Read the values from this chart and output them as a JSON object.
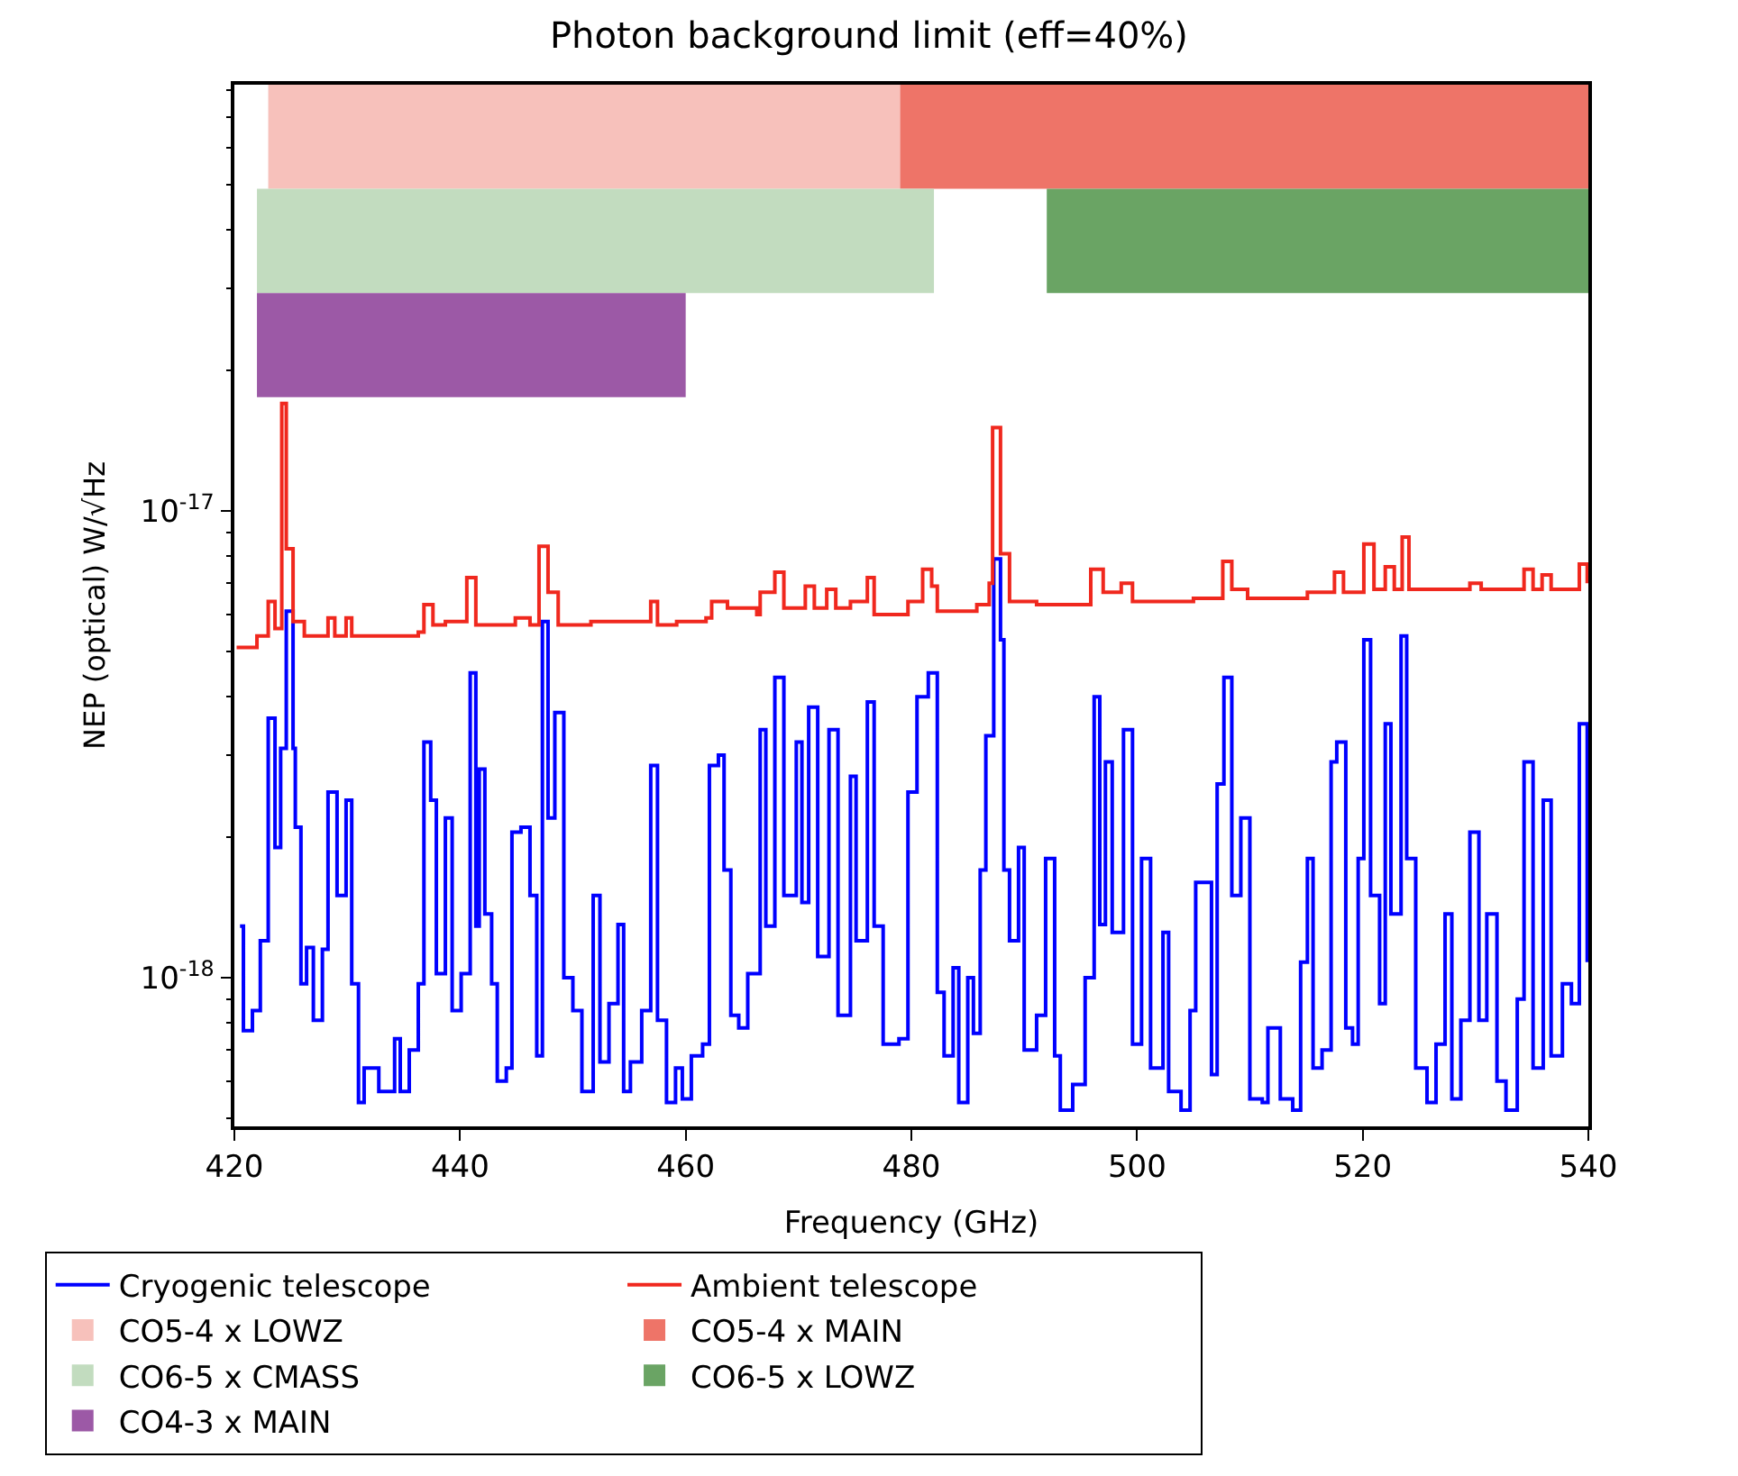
{
  "chart_data": {
    "type": "step",
    "title": "Photon background limit (eff=40%)",
    "xlabel": "Frequency (GHz)",
    "ylabel": "NEP (optical) W/√Hz",
    "log": "y",
    "grid": false,
    "legend": "bottom",
    "marker": "none",
    "line_style": "solid",
    "xlim": [
      420,
      540
    ],
    "xticks": [
      420,
      440,
      460,
      480,
      500,
      520,
      540
    ],
    "ylim": [
      4.8e-19,
      8.2e-17
    ],
    "yticks": [
      {
        "value": 1e-18,
        "label": "10$^{-18}$"
      },
      {
        "value": 1e-17,
        "label": "10$^{-17}$"
      }
    ],
    "series": [
      {
        "name": "Cryogenic telescope",
        "color": "#0000ff",
        "x": [
          420.5,
          420.8,
          421.6,
          422.3,
          423.0,
          423.6,
          424.1,
          424.6,
          425.2,
          425.4,
          425.9,
          426.4,
          427.0,
          427.8,
          428.3,
          429.1,
          429.9,
          430.4,
          431.0,
          431.5,
          432.8,
          434.2,
          434.7,
          435.5,
          436.3,
          436.8,
          437.4,
          437.9,
          438.7,
          439.3,
          440.1,
          440.9,
          441.4,
          441.7,
          442.2,
          442.8,
          443.3,
          444.1,
          444.6,
          445.4,
          446.2,
          446.8,
          447.3,
          447.8,
          448.4,
          449.2,
          450.0,
          450.8,
          451.8,
          452.4,
          453.2,
          454.0,
          454.5,
          455.1,
          456.1,
          456.9,
          457.5,
          458.3,
          459.1,
          459.7,
          460.5,
          461.5,
          462.1,
          462.9,
          463.4,
          464.0,
          464.7,
          465.5,
          466.6,
          467.1,
          467.9,
          468.7,
          469.8,
          470.3,
          470.9,
          471.7,
          472.7,
          473.5,
          474.6,
          475.1,
          476.1,
          476.7,
          477.5,
          478.9,
          479.7,
          480.5,
          481.5,
          482.3,
          482.9,
          483.7,
          484.2,
          485.0,
          485.5,
          486.1,
          486.6,
          487.3,
          487.9,
          488.2,
          488.7,
          489.5,
          490.0,
          491.1,
          491.9,
          492.7,
          493.2,
          494.3,
          495.4,
          496.2,
          496.7,
          497.2,
          497.8,
          498.8,
          499.6,
          500.4,
          501.2,
          502.3,
          502.8,
          503.9,
          504.7,
          505.2,
          506.6,
          507.1,
          507.7,
          508.4,
          509.2,
          510.0,
          511.1,
          511.6,
          512.7,
          513.8,
          514.5,
          515.1,
          515.6,
          516.4,
          517.2,
          517.7,
          518.5,
          519.1,
          519.6,
          520.1,
          520.7,
          521.5,
          522.0,
          522.5,
          523.4,
          523.9,
          524.7,
          525.7,
          526.5,
          527.3,
          527.9,
          528.7,
          529.5,
          530.3,
          531.0,
          531.9,
          532.7,
          533.7,
          534.3,
          535.1,
          536.0,
          536.7,
          537.7,
          538.5,
          539.2,
          539.9
        ],
        "values": [
          1.29e-18,
          7.7e-19,
          8.5e-19,
          1.2e-18,
          3.6e-18,
          1.9e-18,
          3.1e-18,
          6.1e-18,
          3.1e-18,
          2.1e-18,
          9.7e-19,
          1.16e-18,
          8.1e-19,
          1.15e-18,
          2.5e-18,
          1.5e-18,
          2.4e-18,
          9.7e-19,
          5.4e-19,
          6.4e-19,
          5.7e-19,
          7.4e-19,
          5.7e-19,
          7e-19,
          9.7e-19,
          3.2e-18,
          2.4e-18,
          1.02e-18,
          2.2e-18,
          8.5e-19,
          1.02e-18,
          4.5e-18,
          1.29e-18,
          2.8e-18,
          1.37e-18,
          9.7e-19,
          6e-19,
          6.4e-19,
          2.05e-18,
          2.1e-18,
          1.5e-18,
          6.8e-19,
          5.8e-18,
          2.2e-18,
          3.7e-18,
          1e-18,
          8.5e-19,
          5.7e-19,
          1.5e-18,
          6.6e-19,
          8.8e-19,
          1.3e-18,
          5.7e-19,
          6.6e-19,
          8.5e-19,
          2.85e-18,
          8.1e-19,
          5.4e-19,
          6.4e-19,
          5.5e-19,
          6.8e-19,
          7.2e-19,
          2.85e-18,
          3e-18,
          1.7e-18,
          8.3e-19,
          7.8e-19,
          1.02e-18,
          3.4e-18,
          1.29e-18,
          4.4e-18,
          1.5e-18,
          3.2e-18,
          1.45e-18,
          3.8e-18,
          1.11e-18,
          3.4e-18,
          8.3e-19,
          2.7e-18,
          1.2e-18,
          3.9e-18,
          1.29e-18,
          7.2e-19,
          7.4e-19,
          2.5e-18,
          4e-18,
          4.5e-18,
          9.3e-19,
          6.8e-19,
          1.05e-18,
          5.4e-19,
          1e-18,
          7.6e-19,
          1.7e-18,
          3.3e-18,
          7.9e-18,
          5.3e-18,
          1.7e-18,
          1.2e-18,
          1.9e-18,
          7e-19,
          8.3e-19,
          1.8e-18,
          6.8e-19,
          5.2e-19,
          5.9e-19,
          1e-18,
          4e-18,
          1.3e-18,
          2.9e-18,
          1.25e-18,
          3.4e-18,
          7.2e-19,
          1.8e-18,
          6.4e-19,
          1.25e-18,
          5.7e-19,
          5.2e-19,
          8.5e-19,
          1.6e-18,
          6.2e-19,
          2.6e-18,
          4.4e-18,
          1.5e-18,
          2.2e-18,
          5.5e-19,
          5.4e-19,
          7.8e-19,
          5.5e-19,
          5.2e-19,
          1.08e-18,
          1.8e-18,
          6.4e-19,
          7e-19,
          2.9e-18,
          3.2e-18,
          7.8e-19,
          7.2e-19,
          1.8e-18,
          5.3e-18,
          1.5e-18,
          8.8e-19,
          3.5e-18,
          1.37e-18,
          5.4e-18,
          1.8e-18,
          6.4e-19,
          5.4e-19,
          7.2e-19,
          1.37e-18,
          5.5e-19,
          8.1e-19,
          2.05e-18,
          8.1e-19,
          1.37e-18,
          6e-19,
          5.2e-19,
          9e-19,
          2.9e-18,
          6.4e-19,
          2.4e-18,
          6.8e-19,
          9.7e-19,
          8.8e-19,
          3.5e-18,
          1.08e-18
        ]
      },
      {
        "name": "Ambient telescope",
        "color": "#f0281e",
        "x": [
          420.2,
          422.0,
          423.0,
          423.6,
          424.2,
          424.6,
          425.2,
          426.2,
          428.3,
          428.9,
          429.9,
          430.4,
          436.3,
          436.8,
          437.6,
          438.7,
          440.6,
          441.4,
          444.9,
          446.2,
          447.0,
          447.8,
          448.7,
          451.6,
          454.2,
          456.9,
          457.5,
          459.2,
          461.8,
          462.3,
          463.7,
          466.3,
          466.6,
          467.9,
          468.7,
          470.6,
          471.4,
          472.5,
          473.3,
          474.6,
          476.1,
          476.7,
          479.7,
          481.0,
          481.8,
          482.3,
          485.8,
          486.9,
          487.2,
          487.9,
          488.7,
          491.1,
          495.9,
          497.0,
          498.6,
          499.6,
          500.2,
          505.0,
          507.6,
          508.4,
          509.8,
          515.1,
          517.5,
          518.3,
          520.1,
          521.0,
          522.0,
          522.8,
          523.5,
          524.1,
          529.5,
          530.5,
          534.3,
          535.1,
          535.9,
          536.7,
          539.2,
          539.9
        ],
        "values": [
          5.1e-18,
          5.4e-18,
          6.4e-18,
          5.6e-18,
          1.7e-17,
          8.3e-18,
          5.8e-18,
          5.4e-18,
          5.9e-18,
          5.4e-18,
          5.9e-18,
          5.4e-18,
          5.5e-18,
          6.3e-18,
          5.7e-18,
          5.8e-18,
          7.2e-18,
          5.7e-18,
          5.9e-18,
          5.7e-18,
          8.4e-18,
          6.7e-18,
          5.7e-18,
          5.8e-18,
          5.8e-18,
          6.4e-18,
          5.7e-18,
          5.8e-18,
          5.9e-18,
          6.4e-18,
          6.2e-18,
          6e-18,
          6.7e-18,
          7.4e-18,
          6.2e-18,
          6.9e-18,
          6.2e-18,
          6.8e-18,
          6.2e-18,
          6.4e-18,
          7.2e-18,
          6e-18,
          6.4e-18,
          7.5e-18,
          6.9e-18,
          6.1e-18,
          6.3e-18,
          7e-18,
          1.51e-17,
          8.1e-18,
          6.4e-18,
          6.3e-18,
          7.5e-18,
          6.7e-18,
          7e-18,
          6.4e-18,
          6.4e-18,
          6.5e-18,
          7.8e-18,
          6.8e-18,
          6.5e-18,
          6.7e-18,
          7.4e-18,
          6.7e-18,
          8.5e-18,
          6.8e-18,
          7.6e-18,
          6.8e-18,
          8.8e-18,
          6.8e-18,
          7e-18,
          6.8e-18,
          7.5e-18,
          6.8e-18,
          7.3e-18,
          6.8e-18,
          7.7e-18,
          7e-18
        ]
      }
    ],
    "bands": [
      {
        "axis": "x",
        "from": 423,
        "to": 479,
        "label": "CO5-4 x LOWZ",
        "color": "#f7c1bb"
      },
      {
        "axis": "x",
        "from": 479,
        "to": 540,
        "label": "CO5-4 x MAIN",
        "color": "#ee7468"
      },
      {
        "axis": "x",
        "from": 422,
        "to": 482,
        "label": "CO6-5 x CMASS",
        "color": "#c2dcbf"
      },
      {
        "axis": "x",
        "from": 492,
        "to": 540,
        "label": "CO6-5 x LOWZ",
        "color": "#6aa464"
      },
      {
        "axis": "x",
        "from": 422,
        "to": 460,
        "label": "CO4-3 x MAIN",
        "color": "#9c59a6"
      }
    ]
  }
}
